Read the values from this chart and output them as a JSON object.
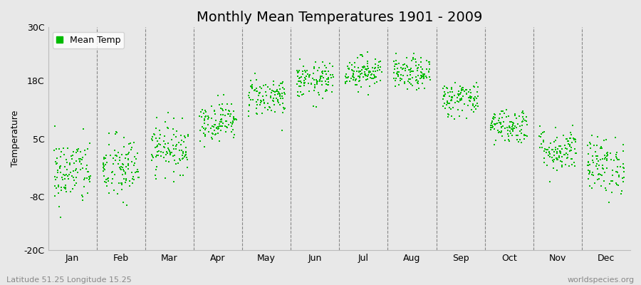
{
  "title": "Monthly Mean Temperatures 1901 - 2009",
  "ylabel": "Temperature",
  "y_ticks": [
    -20,
    -8,
    5,
    18,
    30
  ],
  "y_tick_labels": [
    "-20C",
    "-8C",
    "5C",
    "18C",
    "30C"
  ],
  "ylim": [
    -20,
    30
  ],
  "months": [
    "Jan",
    "Feb",
    "Mar",
    "Apr",
    "May",
    "Jun",
    "Jul",
    "Aug",
    "Sep",
    "Oct",
    "Nov",
    "Dec"
  ],
  "month_means": [
    -2.5,
    -1.8,
    3.0,
    9.0,
    14.5,
    18.0,
    20.0,
    19.5,
    14.0,
    8.0,
    2.5,
    -1.0
  ],
  "month_stds": [
    3.8,
    3.8,
    2.8,
    2.2,
    2.2,
    2.0,
    1.8,
    1.8,
    2.0,
    2.0,
    2.5,
    3.2
  ],
  "n_years": 109,
  "dot_color": "#00bb00",
  "dot_size": 1.5,
  "background_color": "#e8e8e8",
  "plot_bg_color": "#e8e8e8",
  "title_fontsize": 14,
  "axis_label_fontsize": 9,
  "tick_fontsize": 9,
  "legend_label": "Mean Temp",
  "footer_left": "Latitude 51.25 Longitude 15.25",
  "footer_right": "worldspecies.org"
}
